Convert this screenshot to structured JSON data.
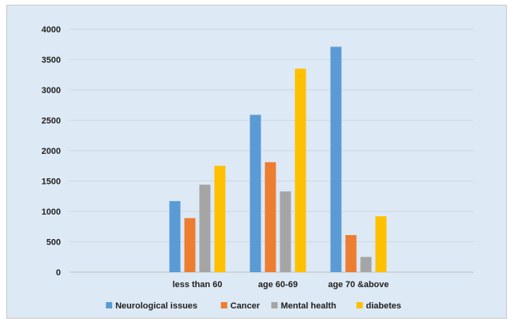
{
  "chart_data": {
    "type": "bar",
    "categories": [
      "less than 60",
      "age 60-69",
      "age 70 &above"
    ],
    "series": [
      {
        "name": "Neurological issues",
        "color": "#5b9bd5",
        "values": [
          1170,
          2590,
          3710
        ]
      },
      {
        "name": "Cancer",
        "color": "#ed7d31",
        "values": [
          890,
          1810,
          610
        ]
      },
      {
        "name": "Mental health",
        "color": "#a5a5a5",
        "values": [
          1440,
          1330,
          250
        ]
      },
      {
        "name": "diabetes",
        "color": "#ffc000",
        "values": [
          1750,
          3350,
          920
        ]
      }
    ],
    "yticks": [
      "0",
      "500",
      "1000",
      "1500",
      "2000",
      "2500",
      "3000",
      "3500",
      "4000"
    ],
    "ylim": [
      0,
      4000
    ],
    "grid": true,
    "legend": "bottom"
  }
}
